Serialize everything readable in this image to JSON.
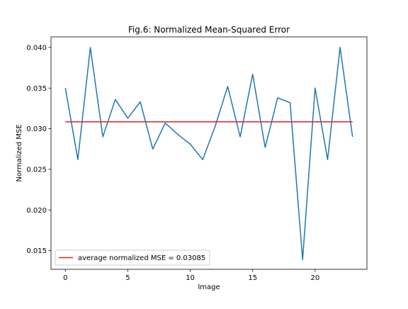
{
  "chart_data": {
    "type": "line",
    "title": "Fig.6: Normalized Mean-Squared Error",
    "xlabel": "Image",
    "ylabel": "Normalized MSE",
    "xlim": [
      -1.15,
      24.15
    ],
    "ylim": [
      0.0127,
      0.0413
    ],
    "x_ticks": [
      0,
      5,
      10,
      15,
      20
    ],
    "y_ticks": [
      0.015,
      0.02,
      0.025,
      0.03,
      0.035,
      0.04
    ],
    "y_tick_labels": [
      "0.015",
      "0.020",
      "0.025",
      "0.030",
      "0.035",
      "0.040"
    ],
    "series": [
      {
        "name": "normalized MSE",
        "color": "#1f77b4",
        "x": [
          0,
          1,
          2,
          3,
          4,
          5,
          6,
          7,
          8,
          9,
          10,
          11,
          12,
          13,
          14,
          15,
          16,
          17,
          18,
          19,
          20,
          21,
          22,
          23
        ],
        "values": [
          0.035,
          0.0262,
          0.04,
          0.029,
          0.0336,
          0.0313,
          0.0333,
          0.0275,
          0.0307,
          0.0293,
          0.0281,
          0.0262,
          0.0303,
          0.0352,
          0.029,
          0.0367,
          0.0277,
          0.0338,
          0.0332,
          0.0139,
          0.035,
          0.0262,
          0.04,
          0.029
        ]
      },
      {
        "name": "average normalized MSE = 0.03085",
        "color": "#d62728",
        "x": [
          0,
          23
        ],
        "values": [
          0.03085,
          0.03085
        ]
      }
    ],
    "legend": {
      "position": "lower-left",
      "label": "average normalized MSE = 0.03085"
    }
  }
}
